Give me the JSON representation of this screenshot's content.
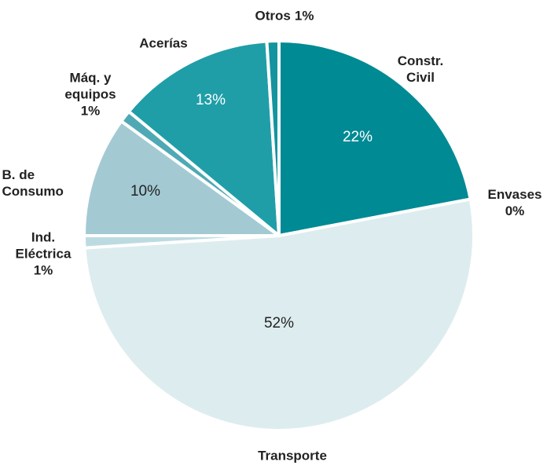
{
  "chart_data": {
    "type": "pie",
    "categories": [
      "Constr. Civil",
      "Envases",
      "Transporte",
      "Ind. Eléctrica",
      "B. de Consumo",
      "Máq. y equipos",
      "Acerías",
      "Otros"
    ],
    "values": [
      22,
      0,
      52,
      1,
      10,
      1,
      13,
      1
    ],
    "value_labels": [
      "22%",
      "0%",
      "52%",
      "1%",
      "10%",
      "1%",
      "13%",
      "1%"
    ],
    "colors": [
      "#008a94",
      "#007f89",
      "#ddecef",
      "#bcdbe1",
      "#a3cad3",
      "#4fa9b4",
      "#1f9ea8",
      "#14949f"
    ]
  }
}
